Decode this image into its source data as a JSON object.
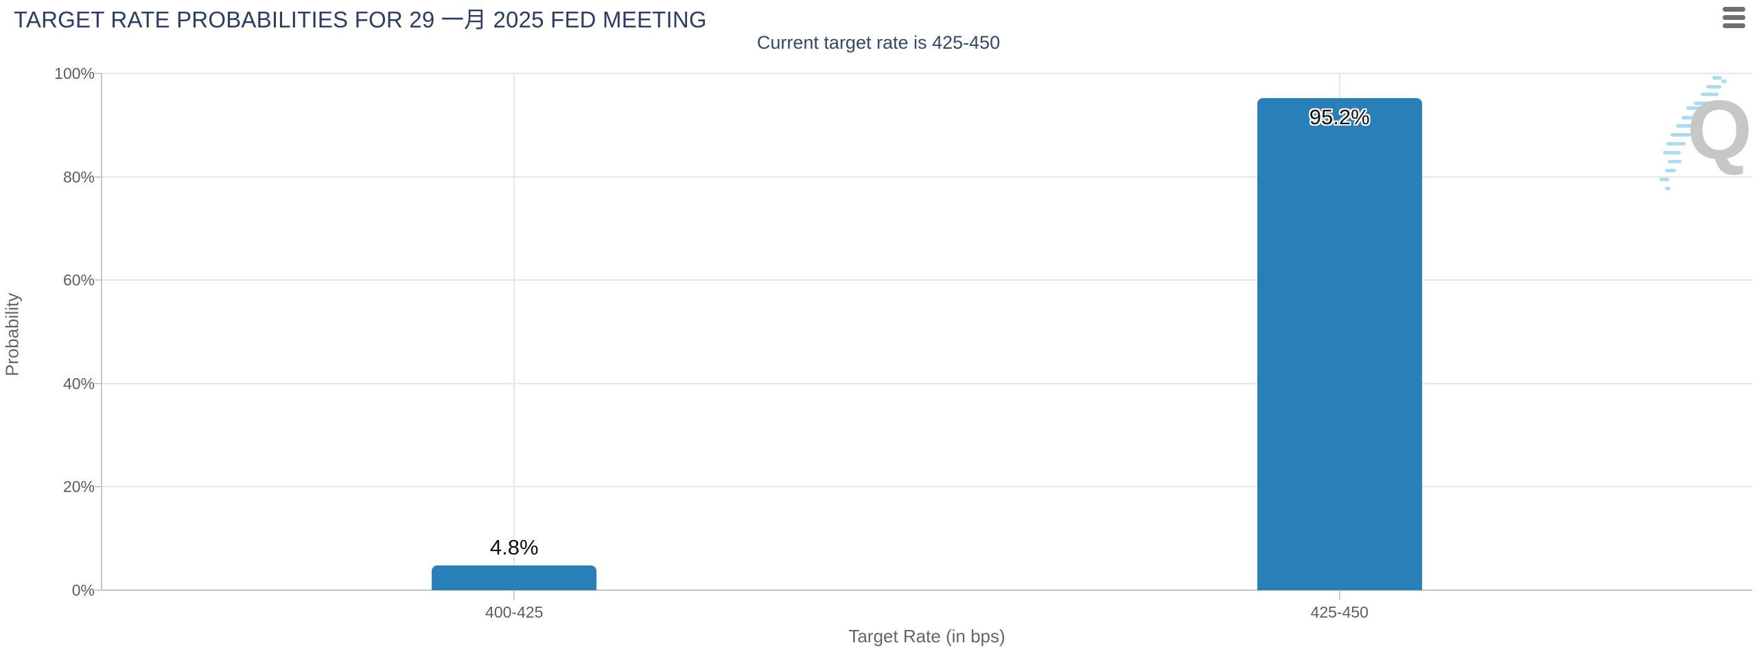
{
  "header": {
    "menu_icon": "hamburger-menu"
  },
  "chart_data": {
    "type": "bar",
    "title": "TARGET RATE PROBABILITIES FOR 29 一月 2025 FED MEETING",
    "subtitle": "Current target rate is 425-450",
    "categories": [
      "400-425",
      "425-450"
    ],
    "values": [
      4.8,
      95.2
    ],
    "value_labels": [
      "4.8%",
      "95.2%"
    ],
    "xlabel": "Target Rate (in bps)",
    "ylabel": "Probability",
    "ylim": [
      0,
      100
    ],
    "ytick_labels": [
      "0%",
      "20%",
      "40%",
      "60%",
      "80%",
      "100%"
    ],
    "ytick_values": [
      0,
      20,
      40,
      60,
      80,
      100
    ],
    "grid": true,
    "legend": "none",
    "bar_color": "#2980b8"
  },
  "watermark": {
    "letter": "Q"
  },
  "colors": {
    "title": "#293e67",
    "subtitle": "#33486e",
    "bar": "#2980b8",
    "axis_text": "#5c5c5c",
    "axis_title": "#666666",
    "gridline": "#e7e7e7"
  }
}
